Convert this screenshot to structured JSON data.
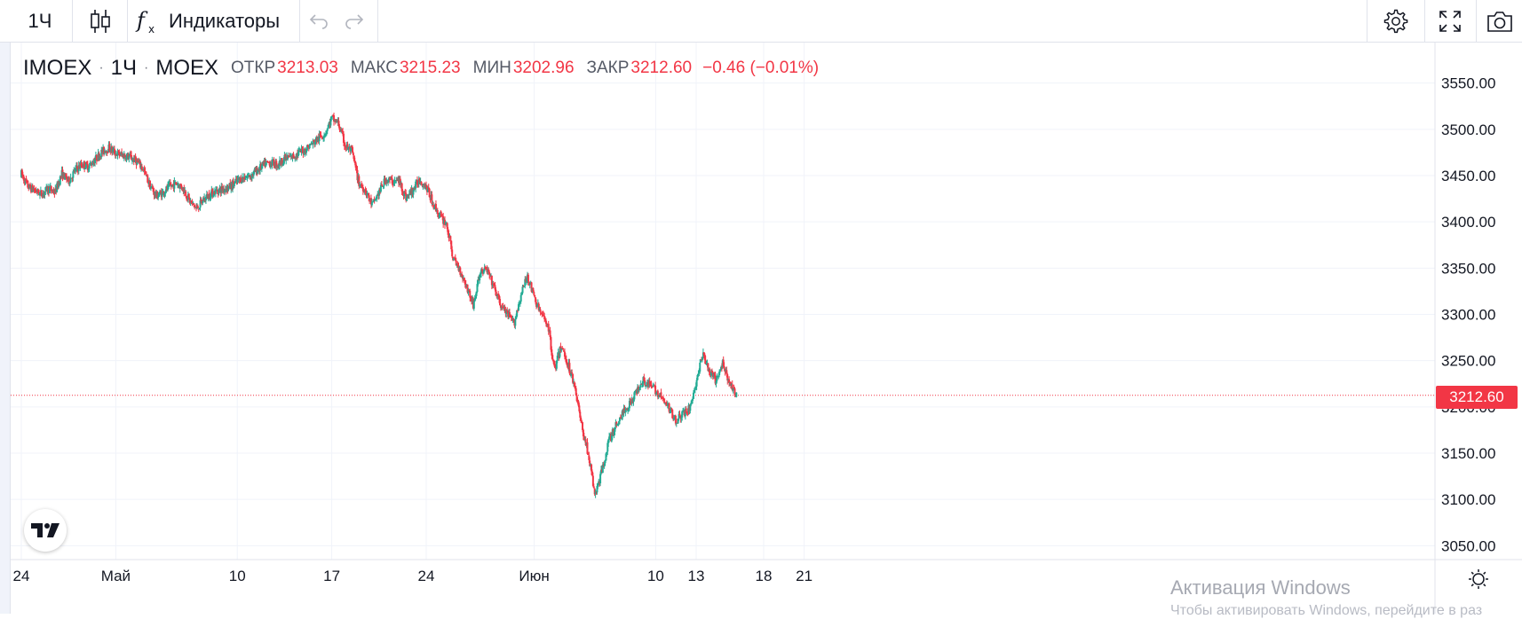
{
  "toolbar": {
    "interval": "1Ч",
    "indicators_label": "Индикаторы",
    "icons": [
      "candles-icon",
      "fx-icon",
      "undo-icon",
      "redo-icon",
      "settings-icon",
      "fullscreen-icon",
      "camera-icon"
    ]
  },
  "legend": {
    "symbol": "IMOEX",
    "interval": "1Ч",
    "exchange": "MOEX",
    "open_label": "ОТКР",
    "open_value": "3213.03",
    "high_label": "МАКС",
    "high_value": "3215.23",
    "low_label": "МИН",
    "low_value": "3202.96",
    "close_label": "ЗАКР",
    "close_value": "3212.60",
    "change": "−0.46 (−0.01%)"
  },
  "last_price_label": "3212.60",
  "watermark": {
    "title": "Активация Windows",
    "subtitle": "Чтобы активировать Windows, перейдите в раз"
  },
  "colors": {
    "up": "#22ab94",
    "down": "#f23645",
    "grid": "#f0f3fa",
    "axis_text": "#131722"
  },
  "chart_data": {
    "type": "candlestick",
    "title": "",
    "xlabel": "",
    "ylabel": "",
    "ylim": [
      3035,
      3565
    ],
    "y_ticks": [
      "3550.00",
      "3500.00",
      "3450.00",
      "3400.00",
      "3350.00",
      "3300.00",
      "3250.00",
      "3200.00",
      "3150.00",
      "3100.00",
      "3050.00"
    ],
    "x_ticks": [
      {
        "label": "24",
        "day": 0
      },
      {
        "label": "Май",
        "day": 7
      },
      {
        "label": "10",
        "day": 16
      },
      {
        "label": "17",
        "day": 23
      },
      {
        "label": "24",
        "day": 30
      },
      {
        "label": "Июн",
        "day": 38
      },
      {
        "label": "10",
        "day": 47
      },
      {
        "label": "13",
        "day": 50
      },
      {
        "label": "18",
        "day": 55
      },
      {
        "label": "21",
        "day": 58
      }
    ],
    "last_price": 3212.6,
    "grid": true,
    "close_path": [
      [
        0,
        3452
      ],
      [
        0.5,
        3438
      ],
      [
        1,
        3434
      ],
      [
        1.5,
        3430
      ],
      [
        2,
        3436
      ],
      [
        2.5,
        3432
      ],
      [
        3,
        3452
      ],
      [
        3.5,
        3444
      ],
      [
        4,
        3456
      ],
      [
        4.5,
        3462
      ],
      [
        5,
        3460
      ],
      [
        5.5,
        3468
      ],
      [
        6,
        3476
      ],
      [
        6.5,
        3480
      ],
      [
        7,
        3474
      ],
      [
        7.5,
        3472
      ],
      [
        8,
        3470
      ],
      [
        8.5,
        3466
      ],
      [
        9,
        3458
      ],
      [
        9.5,
        3440
      ],
      [
        10,
        3428
      ],
      [
        10.5,
        3432
      ],
      [
        11,
        3438
      ],
      [
        11.5,
        3442
      ],
      [
        12,
        3436
      ],
      [
        12.5,
        3422
      ],
      [
        13,
        3414
      ],
      [
        13.5,
        3424
      ],
      [
        14,
        3430
      ],
      [
        14.5,
        3434
      ],
      [
        15,
        3436
      ],
      [
        15.5,
        3438
      ],
      [
        16,
        3444
      ],
      [
        16.5,
        3448
      ],
      [
        17,
        3450
      ],
      [
        17.5,
        3456
      ],
      [
        18,
        3462
      ],
      [
        18.5,
        3464
      ],
      [
        19,
        3462
      ],
      [
        19.5,
        3468
      ],
      [
        20,
        3470
      ],
      [
        20.5,
        3474
      ],
      [
        21,
        3478
      ],
      [
        21.5,
        3484
      ],
      [
        22,
        3490
      ],
      [
        22.5,
        3496
      ],
      [
        23,
        3512
      ],
      [
        23.5,
        3506
      ],
      [
        24,
        3482
      ],
      [
        24.5,
        3476
      ],
      [
        25,
        3442
      ],
      [
        25.5,
        3434
      ],
      [
        26,
        3418
      ],
      [
        26.5,
        3432
      ],
      [
        27,
        3446
      ],
      [
        27.5,
        3444
      ],
      [
        28,
        3444
      ],
      [
        28.5,
        3426
      ],
      [
        29,
        3434
      ],
      [
        29.5,
        3446
      ],
      [
        30,
        3438
      ],
      [
        30.5,
        3420
      ],
      [
        31,
        3406
      ],
      [
        31.5,
        3398
      ],
      [
        32,
        3360
      ],
      [
        32.5,
        3348
      ],
      [
        33,
        3330
      ],
      [
        33.5,
        3310
      ],
      [
        34,
        3346
      ],
      [
        34.5,
        3348
      ],
      [
        35,
        3330
      ],
      [
        35.5,
        3310
      ],
      [
        36,
        3300
      ],
      [
        36.5,
        3290
      ],
      [
        37,
        3320
      ],
      [
        37.5,
        3342
      ],
      [
        38,
        3318
      ],
      [
        38.5,
        3300
      ],
      [
        39,
        3290
      ],
      [
        39.5,
        3240
      ],
      [
        40,
        3266
      ],
      [
        40.5,
        3246
      ],
      [
        41,
        3224
      ],
      [
        41.5,
        3180
      ],
      [
        42,
        3150
      ],
      [
        42.5,
        3104
      ],
      [
        43,
        3130
      ],
      [
        43.5,
        3162
      ],
      [
        44,
        3178
      ],
      [
        44.5,
        3192
      ],
      [
        45,
        3202
      ],
      [
        45.5,
        3214
      ],
      [
        46,
        3230
      ],
      [
        46.5,
        3224
      ],
      [
        47,
        3218
      ],
      [
        47.5,
        3208
      ],
      [
        48,
        3198
      ],
      [
        48.5,
        3186
      ],
      [
        49,
        3192
      ],
      [
        49.5,
        3198
      ],
      [
        50,
        3226
      ],
      [
        50.5,
        3258
      ],
      [
        51,
        3236
      ],
      [
        51.5,
        3228
      ],
      [
        52,
        3248
      ],
      [
        52.5,
        3224
      ],
      [
        53,
        3212.6
      ]
    ]
  }
}
